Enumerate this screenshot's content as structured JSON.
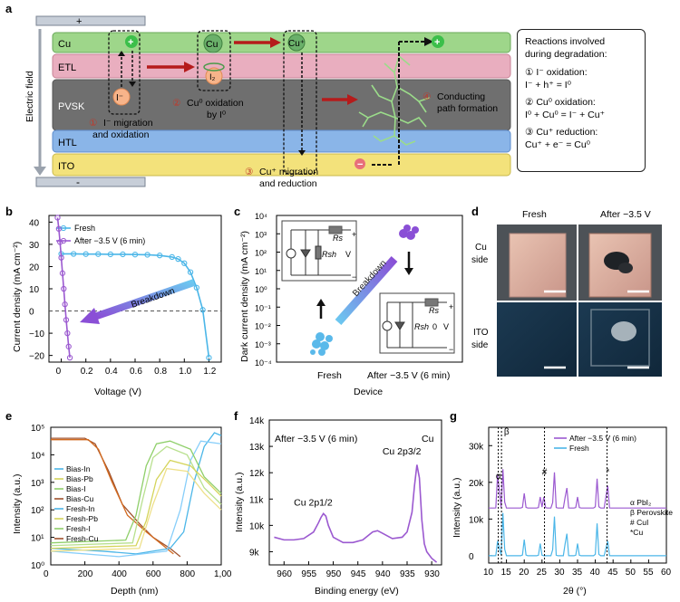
{
  "panel_labels": [
    "a",
    "b",
    "c",
    "d",
    "e",
    "f",
    "g"
  ],
  "panel_a": {
    "electrode_top": "+",
    "electrode_bottom": "-",
    "field_label": "Electric field",
    "layers": [
      "Cu",
      "ETL",
      "PVSK",
      "HTL",
      "ITO"
    ],
    "species": {
      "iodide": "I⁻",
      "cu": "Cu",
      "cu_plus": "Cu⁺",
      "i2": "I₂",
      "plus": "+",
      "minus": "−"
    },
    "steps": [
      {
        "num": "①",
        "text": "I⁻ migration",
        "text2": "and oxidation"
      },
      {
        "num": "②",
        "text": "Cu⁰ oxidation",
        "text2": "by I⁰"
      },
      {
        "num": "③",
        "text": "Cu⁺ migration",
        "text2": "and reduction"
      },
      {
        "num": "④",
        "text": "Conducting",
        "text2": "path formation"
      }
    ],
    "reactions": {
      "title1": "Reactions involved",
      "title2": "during degradation:",
      "r1_title": "① I⁻ oxidation:",
      "r1_eq": "I⁻ + h⁺ = I⁰",
      "r2_title": "② Cu⁰ oxidation:",
      "r2_eq": "I⁰ + Cu⁰ = I⁻ + Cu⁺",
      "r3_title": "③ Cu⁺ reduction:",
      "r3_eq": "Cu⁺ + e⁻ = Cu⁰"
    }
  },
  "panel_b": {
    "chart_data": {
      "type": "line",
      "xlabel": "Voltage (V)",
      "ylabel": "Current density (mA cm⁻²)",
      "xlim": [
        -0.1,
        1.3
      ],
      "ylim": [
        -23,
        43
      ],
      "xticks": [
        "0",
        "0.2",
        "0.4",
        "0.6",
        "0.8",
        "1.0",
        "1.2"
      ],
      "yticks": [
        "−20",
        "−10",
        "0",
        "10",
        "20",
        "30",
        "40"
      ],
      "legend_position": "top-left",
      "annotation": "Breakdown",
      "series": [
        {
          "name": "Fresh",
          "color": "#4bb6e8",
          "x": [
            0,
            0.1,
            0.2,
            0.3,
            0.4,
            0.5,
            0.6,
            0.7,
            0.8,
            0.9,
            0.95,
            1.0,
            1.05,
            1.1,
            1.15,
            1.2
          ],
          "y": [
            25.7,
            25.7,
            25.6,
            25.6,
            25.5,
            25.5,
            25.4,
            25.3,
            25.0,
            24.3,
            23.4,
            21.5,
            17.5,
            10.5,
            0.5,
            -21
          ]
        },
        {
          "name": "After −3.5 V (6 min)",
          "color": "#9b59d0",
          "x": [
            -0.03,
            -0.02,
            -0.01,
            0,
            0.01,
            0.02,
            0.03,
            0.04,
            0.05,
            0.06,
            0.07
          ],
          "y": [
            42,
            37,
            31,
            24,
            17,
            10,
            3,
            -4,
            -10,
            -16,
            -21
          ]
        }
      ]
    }
  },
  "panel_c": {
    "chart_data": {
      "type": "scatter",
      "xlabel": "Device",
      "ylabel": "Dark current density (mA cm⁻²)",
      "categories": [
        "Fresh",
        "After −3.5 V (6 min)"
      ],
      "yticks": [
        "10⁴",
        "10³",
        "10²",
        "10¹",
        "10⁰",
        "10⁻¹",
        "10⁻²",
        "10⁻³",
        "10⁻⁴"
      ],
      "annotation": "Breakdown",
      "circuit_labels": {
        "rs": "Rs",
        "rsh": "Rsh",
        "v": "V",
        "plus": "+",
        "minus": "−",
        "zero": "0"
      }
    }
  },
  "panel_d": {
    "col_labels": [
      "Fresh",
      "After −3.5 V"
    ],
    "row_labels": [
      "Cu side",
      "ITO side"
    ]
  },
  "panel_e": {
    "chart_data": {
      "type": "line",
      "xlabel": "Depth (nm)",
      "ylabel": "Intensity (a.u.)",
      "xticks": [
        "0",
        "200",
        "400",
        "600",
        "800",
        "1,000"
      ],
      "yticks": [
        "10⁰",
        "10¹",
        "10²",
        "10³",
        "10⁴",
        "10⁵"
      ],
      "legend": [
        "Bias-In",
        "Bias-Pb",
        "Bias-I",
        "Bias-Cu",
        "Fresh-In",
        "Fresh-Pb",
        "Fresh-I",
        "Fresh-Cu"
      ],
      "legend_colors": [
        "#4bb6e8",
        "#d4d45a",
        "#8fcf6a",
        "#a0522d",
        "#4bb6e8",
        "#d4d45a",
        "#8fcf6a",
        "#a0522d"
      ]
    }
  },
  "panel_f": {
    "chart_data": {
      "type": "line",
      "title": "After −3.5 V (6 min)",
      "corner_label": "Cu",
      "xlabel": "Binding energy (eV)",
      "ylabel": "Intensity (a.u.)",
      "xticks": [
        "960",
        "955",
        "950",
        "945",
        "940",
        "935",
        "930"
      ],
      "yticks": [
        "9k",
        "10k",
        "11k",
        "12k",
        "13k",
        "14k"
      ],
      "peak_labels": [
        "Cu 2p1/2",
        "Cu 2p3/2"
      ],
      "color": "#9b59d0",
      "x": [
        962,
        960,
        958,
        956,
        954,
        953,
        952.5,
        952,
        951.5,
        951,
        950,
        948,
        946,
        944,
        942,
        941,
        940,
        938,
        936,
        935,
        934,
        933.5,
        933,
        932.5,
        932,
        931.5,
        931,
        930,
        929
      ],
      "y": [
        9.55,
        9.45,
        9.45,
        9.5,
        9.75,
        10.1,
        10.3,
        10.45,
        10.35,
        10.0,
        9.55,
        9.35,
        9.35,
        9.45,
        9.75,
        9.8,
        9.7,
        9.5,
        9.55,
        9.75,
        10.5,
        11.5,
        12.3,
        11.8,
        10.2,
        9.3,
        9.0,
        8.75,
        8.6
      ]
    }
  },
  "panel_g": {
    "chart_data": {
      "type": "line",
      "xlabel": "2θ (°)",
      "ylabel": "Intensity (a.u.)",
      "xticks": [
        "10",
        "15",
        "20",
        "25",
        "30",
        "35",
        "40",
        "45",
        "50",
        "55",
        "60"
      ],
      "yticks": [
        "0",
        "10k",
        "20k",
        "30k"
      ],
      "legend": [
        "After −3.5 V (6 min)",
        "Fresh"
      ],
      "legend_colors": [
        "#9b59d0",
        "#4bb6e8"
      ],
      "markers": [
        "α",
        "β",
        "#",
        "*"
      ],
      "marker_legend": [
        "α PbI₂",
        "β Perovskite",
        "# CuI",
        "*Cu"
      ]
    }
  }
}
